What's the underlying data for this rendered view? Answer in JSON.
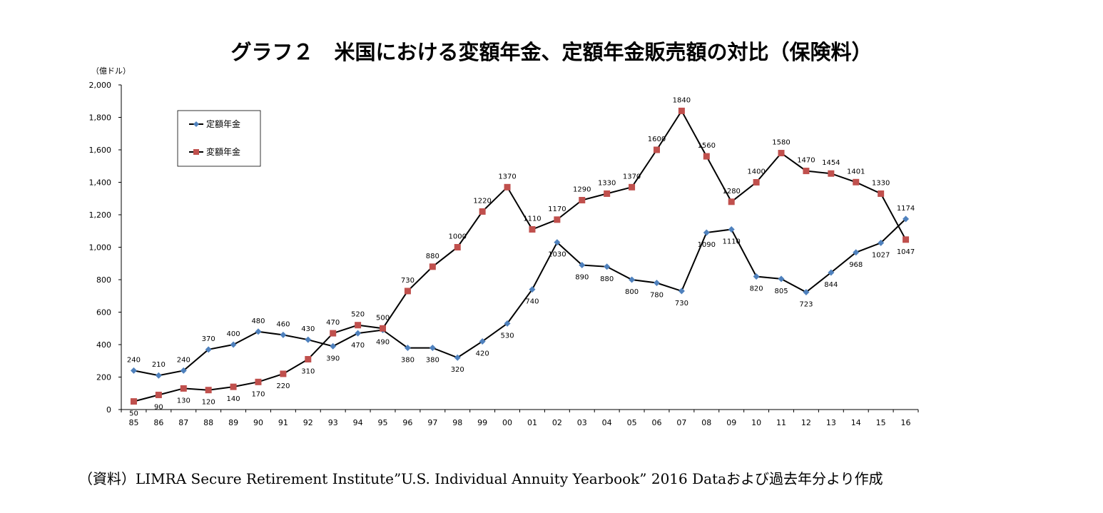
{
  "title": "グラフ２　米国における変額年金、定額年金販売額の対比（保険料）",
  "source": "（資料）LIMRA Secure Retirement Institute”U.S. Individual Annuity Yearbook” 2016 Dataおよび過去年分より作成",
  "colors": {
    "fixed": "#4f81bd",
    "variable": "#c0504d",
    "line": "#000000"
  },
  "chart_data": {
    "type": "line",
    "unit_label": "（億ドル）",
    "categories": [
      "85",
      "86",
      "87",
      "88",
      "89",
      "90",
      "91",
      "92",
      "93",
      "94",
      "95",
      "96",
      "97",
      "98",
      "99",
      "00",
      "01",
      "02",
      "03",
      "04",
      "05",
      "06",
      "07",
      "08",
      "09",
      "10",
      "11",
      "12",
      "13",
      "14",
      "15",
      "16"
    ],
    "ylim": [
      0,
      2000
    ],
    "yticks": [
      0,
      200,
      400,
      600,
      800,
      1000,
      1200,
      1400,
      1600,
      1800,
      2000
    ],
    "ytick_labels": [
      "0",
      "200",
      "400",
      "600",
      "800",
      "1,000",
      "1,200",
      "1,400",
      "1,600",
      "1,800",
      "2,000"
    ],
    "legend_position": "top-left",
    "grid": false,
    "series": [
      {
        "name": "定額年金",
        "marker": "diamond",
        "values": [
          240,
          210,
          240,
          370,
          400,
          480,
          460,
          430,
          390,
          470,
          490,
          380,
          380,
          320,
          420,
          530,
          740,
          1030,
          890,
          880,
          800,
          780,
          730,
          1090,
          1110,
          820,
          805,
          723,
          844,
          968,
          1027,
          1174
        ]
      },
      {
        "name": "変額年金",
        "marker": "square",
        "values": [
          50,
          90,
          130,
          120,
          140,
          170,
          220,
          310,
          470,
          520,
          500,
          730,
          880,
          1000,
          1220,
          1370,
          1110,
          1170,
          1290,
          1330,
          1370,
          1600,
          1840,
          1560,
          1280,
          1400,
          1580,
          1470,
          1454,
          1401,
          1330,
          1047
        ]
      }
    ]
  }
}
